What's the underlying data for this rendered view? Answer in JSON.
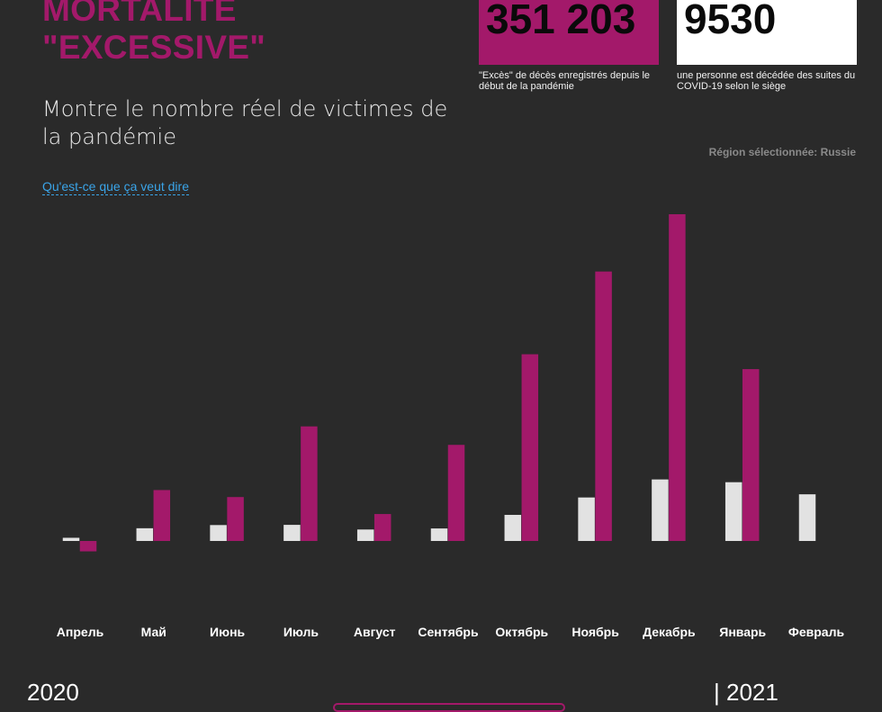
{
  "header": {
    "title_line1": "MORTALITÉ",
    "title_line2": "\"EXCESSIVE\"",
    "subtitle": "Montre le nombre réel de victimes de la pandémie",
    "explain_link": "Qu'est-ce que ça veut dire"
  },
  "stats": {
    "excess_value": "351 203",
    "excess_caption": "\"Excès\" de décès enregistrés depuis le début de la pandémie",
    "covid_value": "9530",
    "covid_caption": "une personne est décédée des suites du COVID-19 selon le siège"
  },
  "region": "Région sélectionnée: Russie",
  "timeline": {
    "year_start": "2020",
    "year_end": "| 2021"
  },
  "colors": {
    "accent": "#a3196a",
    "covid_bar": "#e2e2e2",
    "background": "#2a2a2a",
    "link": "#3aa4e8"
  },
  "chart_data": {
    "type": "bar",
    "categories": [
      "Апрель",
      "Май",
      "Июнь",
      "Июль",
      "Август",
      "Сентябрь",
      "Октябрь",
      "Ноябрь",
      "Декабрь",
      "Январь",
      "Февраль"
    ],
    "series": [
      {
        "values": [
          1500,
          6000,
          7500,
          7600,
          5400,
          5900,
          12300,
          20500,
          29000,
          27700,
          22000
        ]
      },
      {
        "values": [
          -4900,
          24000,
          20700,
          54000,
          12700,
          45300,
          88000,
          127000,
          154000,
          81000,
          null
        ]
      }
    ],
    "ylim": [
      -8000,
      162000
    ],
    "grid": false
  }
}
